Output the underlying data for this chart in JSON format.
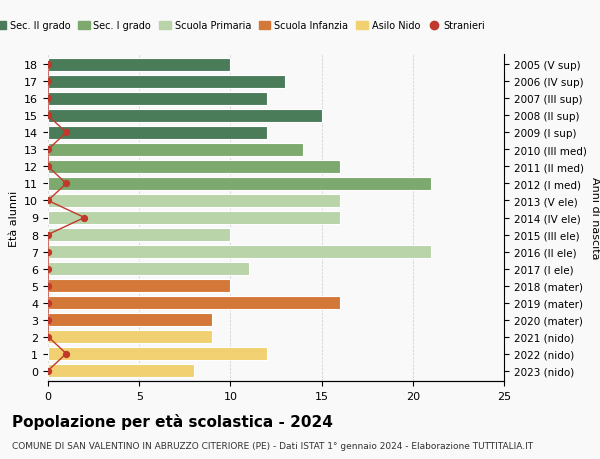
{
  "ages": [
    18,
    17,
    16,
    15,
    14,
    13,
    12,
    11,
    10,
    9,
    8,
    7,
    6,
    5,
    4,
    3,
    2,
    1,
    0
  ],
  "labels_right": [
    "2005 (V sup)",
    "2006 (IV sup)",
    "2007 (III sup)",
    "2008 (II sup)",
    "2009 (I sup)",
    "2010 (III med)",
    "2011 (II med)",
    "2012 (I med)",
    "2013 (V ele)",
    "2014 (IV ele)",
    "2015 (III ele)",
    "2016 (II ele)",
    "2017 (I ele)",
    "2018 (mater)",
    "2019 (mater)",
    "2020 (mater)",
    "2021 (nido)",
    "2022 (nido)",
    "2023 (nido)"
  ],
  "bar_values": [
    10,
    13,
    12,
    15,
    12,
    14,
    16,
    21,
    16,
    16,
    10,
    21,
    11,
    10,
    16,
    9,
    9,
    12,
    8
  ],
  "bar_colors": [
    "#4a7c59",
    "#4a7c59",
    "#4a7c59",
    "#4a7c59",
    "#4a7c59",
    "#7da86e",
    "#7da86e",
    "#7da86e",
    "#b8d4a8",
    "#b8d4a8",
    "#b8d4a8",
    "#b8d4a8",
    "#b8d4a8",
    "#d4783a",
    "#d4783a",
    "#d4783a",
    "#f0d070",
    "#f0d070",
    "#f0d070"
  ],
  "stranieri_values": [
    0,
    0,
    0,
    0,
    1,
    0,
    0,
    1,
    0,
    2,
    0,
    0,
    0,
    0,
    0,
    0,
    0,
    1,
    0
  ],
  "legend_labels": [
    "Sec. II grado",
    "Sec. I grado",
    "Scuola Primaria",
    "Scuola Infanzia",
    "Asilo Nido",
    "Stranieri"
  ],
  "legend_colors": [
    "#4a7c59",
    "#7da86e",
    "#b8d4a8",
    "#d4783a",
    "#f0d070",
    "#c0392b"
  ],
  "title": "Popolazione per età scolastica - 2024",
  "subtitle": "COMUNE DI SAN VALENTINO IN ABRUZZO CITERIORE (PE) - Dati ISTAT 1° gennaio 2024 - Elaborazione TUTTITALIA.IT",
  "xlabel_left": "Età alunni",
  "xlabel_right": "Anni di nascita",
  "xlim": [
    0,
    25
  ],
  "background_color": "#f9f9f9",
  "bar_bg_color": "#ffffff",
  "stranieri_color": "#c0392b",
  "stranieri_line_color": "#c0392b"
}
